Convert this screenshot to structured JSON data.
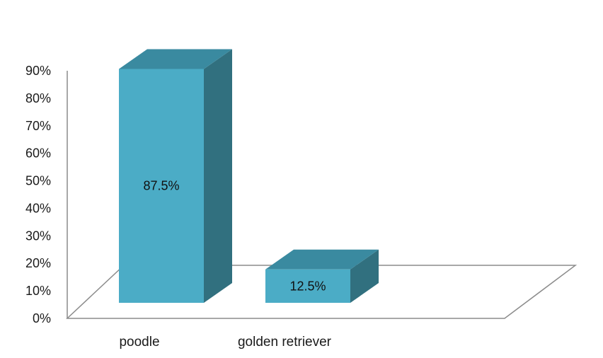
{
  "chart_data": {
    "type": "bar",
    "style": "3d-column",
    "categories": [
      "poodle",
      "golden retriever"
    ],
    "values": [
      87.5,
      12.5
    ],
    "data_labels": [
      "87.5%",
      "12.5%"
    ],
    "y_ticks": [
      "0%",
      "10%",
      "20%",
      "30%",
      "40%",
      "50%",
      "60%",
      "70%",
      "80%",
      "90%"
    ],
    "ylim": [
      0,
      90
    ],
    "title": "",
    "xlabel": "",
    "ylabel": "",
    "grid": false,
    "legend": "none"
  },
  "colors": {
    "bar_front": "#4bacc6",
    "bar_top": "#3a8aa0",
    "bar_side": "#31707f",
    "axis": "#8c8c8c"
  }
}
